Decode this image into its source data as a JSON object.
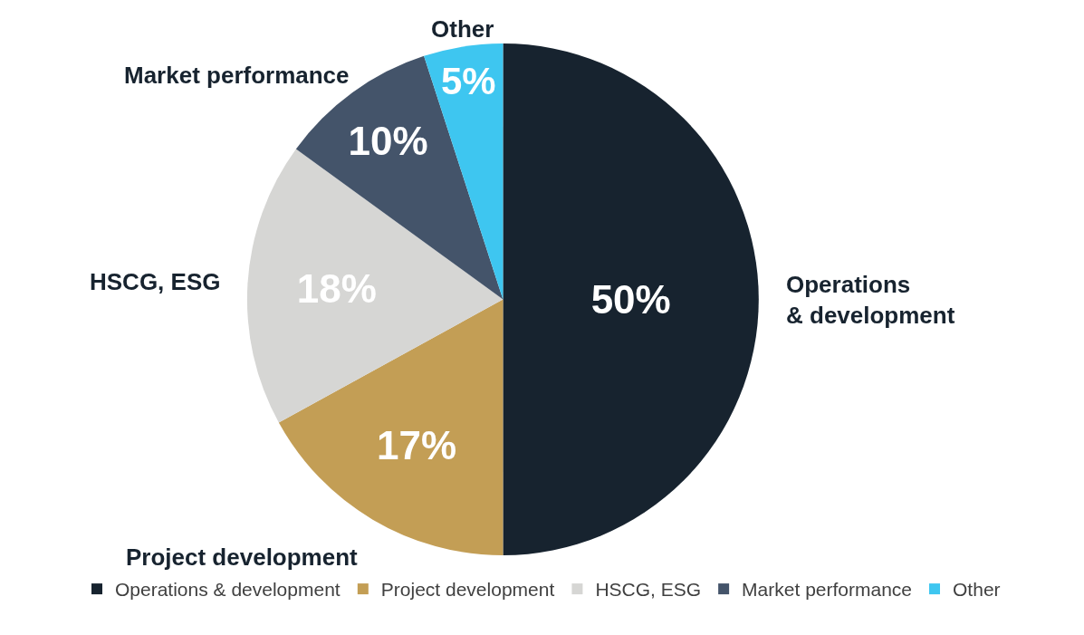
{
  "chart_data": {
    "type": "pie",
    "categories": [
      "Operations & development",
      "Project development",
      "HSCG, ESG",
      "Market performance",
      "Other"
    ],
    "values": [
      50,
      17,
      18,
      10,
      5
    ],
    "value_labels": [
      "50%",
      "17%",
      "18%",
      "10%",
      "5%"
    ],
    "colors": [
      "#17232f",
      "#c39e55",
      "#d6d6d4",
      "#44546a",
      "#3ec6f0"
    ],
    "annotations": [
      "Operations\n& development",
      "Project development",
      "HSCG, ESG",
      "Market performance",
      "Other"
    ],
    "legend": "bottom"
  }
}
